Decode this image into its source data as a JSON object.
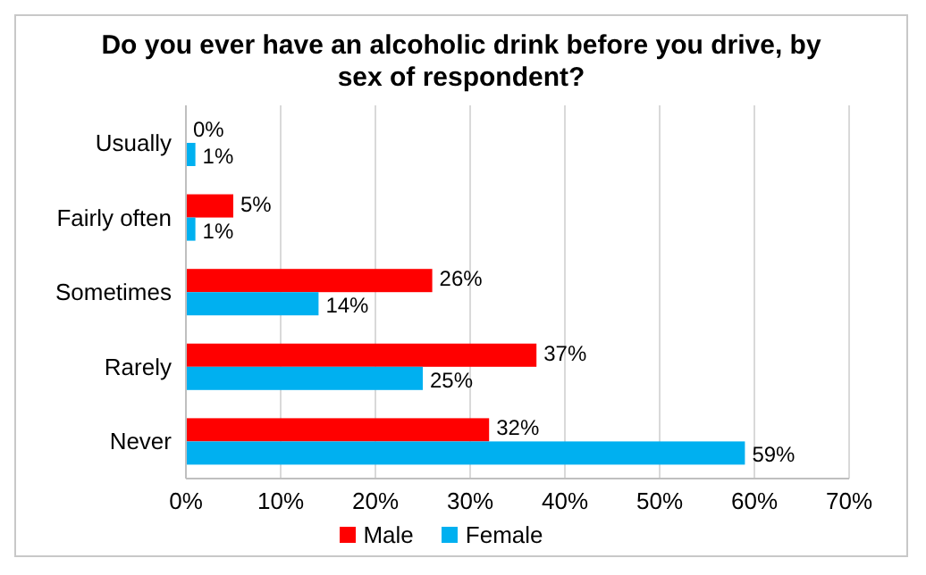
{
  "chart_data": {
    "type": "bar",
    "orientation": "horizontal",
    "title": "Do you ever have an alcoholic drink before you drive, by sex of respondent?",
    "categories": [
      "Usually",
      "Fairly often",
      "Sometimes",
      "Rarely",
      "Never"
    ],
    "series": [
      {
        "name": "Male",
        "color": "#ff0000",
        "values": [
          0,
          5,
          26,
          37,
          32
        ],
        "value_labels": [
          "0%",
          "5%",
          "26%",
          "37%",
          "32%"
        ]
      },
      {
        "name": "Female",
        "color": "#00b0f0",
        "values": [
          1,
          1,
          14,
          25,
          59
        ],
        "value_labels": [
          "1%",
          "1%",
          "14%",
          "25%",
          "59%"
        ]
      }
    ],
    "xlim": [
      0,
      70
    ],
    "xticks": [
      {
        "value": 0,
        "label": "0%"
      },
      {
        "value": 10,
        "label": "10%"
      },
      {
        "value": 20,
        "label": "20%"
      },
      {
        "value": 30,
        "label": "30%"
      },
      {
        "value": 40,
        "label": "40%"
      },
      {
        "value": 50,
        "label": "50%"
      },
      {
        "value": 60,
        "label": "60%"
      },
      {
        "value": 70,
        "label": "70%"
      }
    ],
    "grid": "x",
    "legend": "bottom"
  }
}
